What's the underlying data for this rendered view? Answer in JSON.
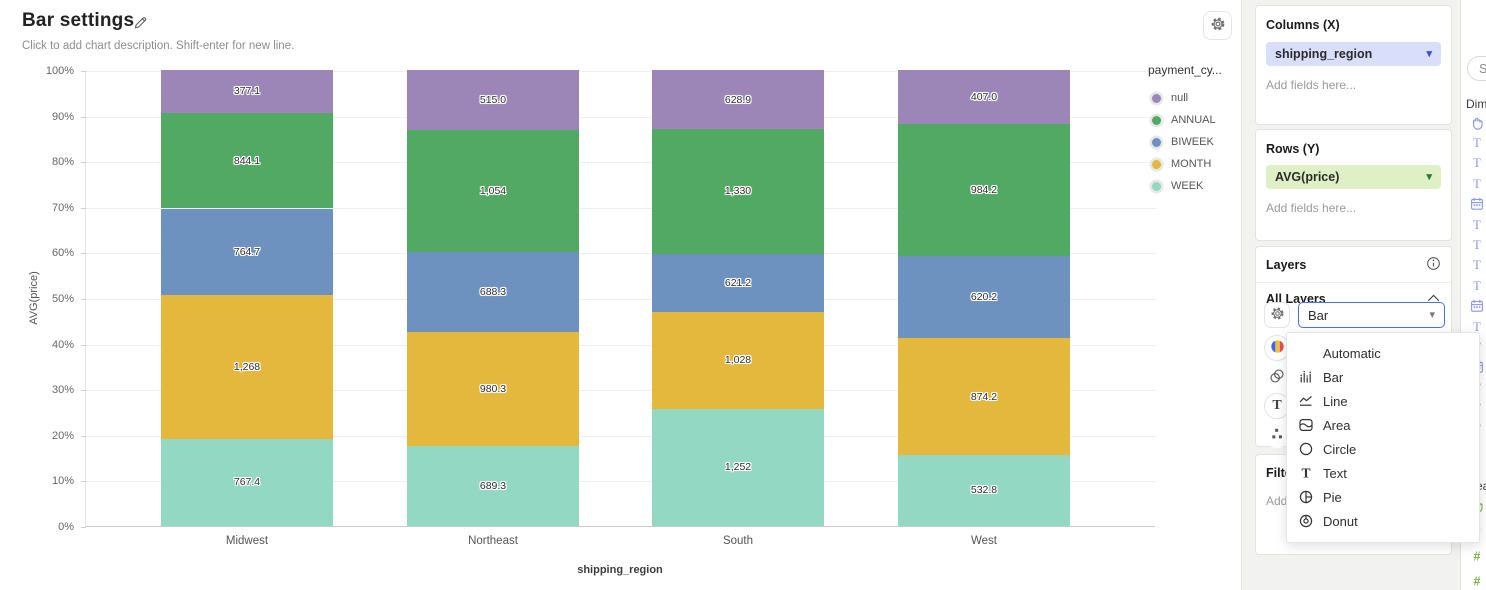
{
  "header": {
    "title": "Bar settings",
    "description_placeholder": "Click to add chart description. Shift-enter for new line."
  },
  "chart_data": {
    "type": "bar",
    "stacked": true,
    "percent_normalized": true,
    "title": "Bar settings",
    "xlabel": "shipping_region",
    "ylabel": "AVG(price)",
    "categories": [
      "Midwest",
      "Northeast",
      "South",
      "West"
    ],
    "series": [
      {
        "name": "WEEK",
        "color": "#93d8c2",
        "values": [
          767.4,
          689.3,
          1252,
          532.8
        ],
        "labels": [
          "767.4",
          "689.3",
          "1,252",
          "532.8"
        ]
      },
      {
        "name": "MONTH",
        "color": "#e3b83c",
        "values": [
          1268,
          980.3,
          1028,
          874.2
        ],
        "labels": [
          "1,268",
          "980.3",
          "1,028",
          "874.2"
        ]
      },
      {
        "name": "BIWEEK",
        "color": "#6d92c0",
        "values": [
          764.7,
          688.3,
          621.2,
          620.2
        ],
        "labels": [
          "764.7",
          "688.3",
          "621.2",
          "620.2"
        ]
      },
      {
        "name": "ANNUAL",
        "color": "#52a963",
        "values": [
          844.1,
          1054,
          1330,
          984.2
        ],
        "labels": [
          "844.1",
          "1,054",
          "1,330",
          "984.2"
        ]
      },
      {
        "name": "null",
        "color": "#9c86b8",
        "values": [
          377.1,
          515.0,
          628.9,
          407.0
        ],
        "labels": [
          "377.1",
          "515.0",
          "628.9",
          "407.0"
        ]
      }
    ],
    "y_ticks": [
      "100%",
      "90%",
      "80%",
      "70%",
      "60%",
      "50%",
      "40%",
      "30%",
      "20%",
      "10%",
      "0%"
    ],
    "ylim": [
      0,
      100
    ],
    "grid": "horizontal",
    "legend": {
      "title": "payment_cy...",
      "position": "right",
      "items": [
        "null",
        "ANNUAL",
        "BIWEEK",
        "MONTH",
        "WEEK"
      ]
    }
  },
  "sidebar": {
    "columns_panel": {
      "title": "Columns (X)",
      "field": "shipping_region",
      "placeholder": "Add fields here...",
      "pill_bg": "#d9defb",
      "caret_color": "#4056c9"
    },
    "rows_panel": {
      "title": "Rows (Y)",
      "field": "AVG(price)",
      "placeholder": "Add fields here...",
      "pill_bg": "#e0f0c6",
      "caret_color": "#2e7d32"
    },
    "layers_panel": {
      "title": "Layers",
      "all_layers_label": "All Layers",
      "layer_type_value": "Bar"
    },
    "filter_panel": {
      "title": "Filter",
      "placeholder": "Add fields here..."
    }
  },
  "type_menu": {
    "items": [
      {
        "label": "Automatic",
        "icon": ""
      },
      {
        "label": "Bar",
        "icon": "bar-chart-icon"
      },
      {
        "label": "Line",
        "icon": "line-chart-icon"
      },
      {
        "label": "Area",
        "icon": "area-chart-icon"
      },
      {
        "label": "Circle",
        "icon": "circle-chart-icon"
      },
      {
        "label": "Text",
        "icon": "text-icon"
      },
      {
        "label": "Pie",
        "icon": "pie-chart-icon"
      },
      {
        "label": "Donut",
        "icon": "donut-chart-icon"
      }
    ]
  },
  "fields_panel": {
    "search_placeholder": "Search",
    "dimensions_label": "Dimensions",
    "measures_label": "Measures",
    "dimension_field_icons": [
      "grab-hand-icon",
      "text-field-icon",
      "text-field-icon",
      "text-field-icon",
      "calendar-field-icon",
      "text-field-icon",
      "text-field-icon",
      "text-field-icon",
      "text-field-icon",
      "calendar-field-icon",
      "text-field-icon",
      "text-field-icon",
      "calendar-field-icon",
      "text-field-icon",
      "text-field-icon",
      "text-field-icon"
    ],
    "measure_field_icons": [
      "grab-hand-icon",
      "number-field-icon",
      "number-field-icon",
      "number-field-icon"
    ],
    "dimension_icon_color": "#8a96e8",
    "measure_icon_color": "#7cb342"
  }
}
